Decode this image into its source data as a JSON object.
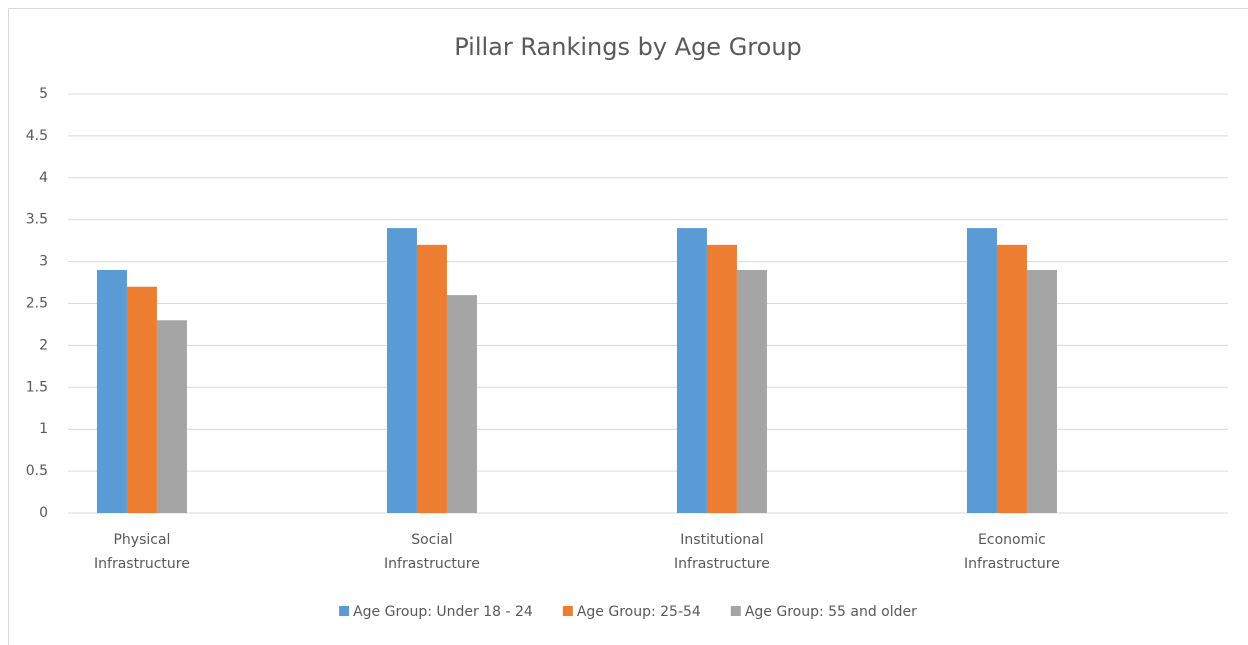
{
  "chart_data": {
    "type": "bar",
    "title": "Pillar Rankings by Age Group",
    "categories": [
      "Physical Infrastructure",
      "Social Infrastructure",
      "Institutional Infrastructure",
      "Economic Infrastructure"
    ],
    "series": [
      {
        "name": "Age Group: Under 18 - 24",
        "color": "#5b9bd5",
        "values": [
          2.9,
          3.4,
          3.4,
          3.4
        ]
      },
      {
        "name": "Age Group: 25-54",
        "color": "#ed7d31",
        "values": [
          2.7,
          3.2,
          3.2,
          3.2
        ]
      },
      {
        "name": "Age Group: 55 and older",
        "color": "#a5a5a5",
        "values": [
          2.3,
          2.6,
          2.9,
          2.9
        ]
      }
    ],
    "ylim": [
      0,
      5
    ],
    "yticks": [
      0,
      0.5,
      1,
      1.5,
      2,
      2.5,
      3,
      3.5,
      4,
      4.5,
      5
    ],
    "grid": true,
    "legend": "bottom"
  }
}
